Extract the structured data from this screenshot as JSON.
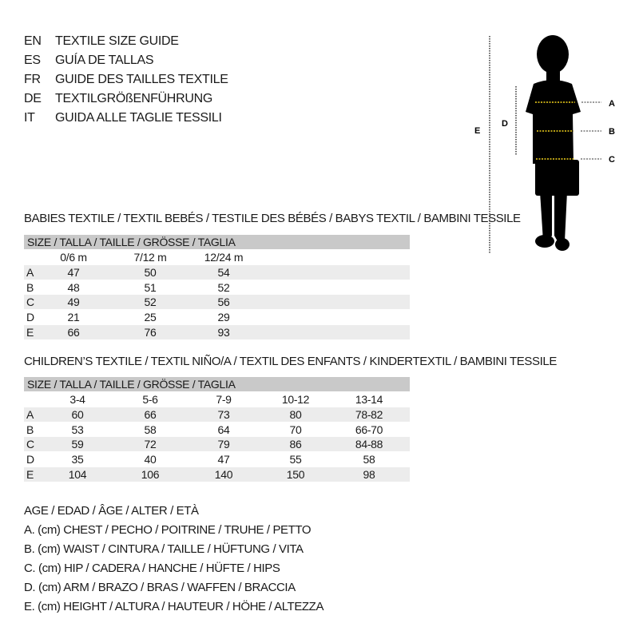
{
  "languages": [
    {
      "code": "EN",
      "title": "TEXTILE SIZE GUIDE"
    },
    {
      "code": "ES",
      "title": "GUÍA DE TALLAS"
    },
    {
      "code": "FR",
      "title": "GUIDE DES TAILLES TEXTILE"
    },
    {
      "code": "DE",
      "title": "TEXTILGRÖßENFÜHRUNG"
    },
    {
      "code": "IT",
      "title": "GUIDA ALLE TAGLIE TESSILI"
    }
  ],
  "figure": {
    "labels": {
      "a": "A",
      "b": "B",
      "c": "C",
      "d": "D",
      "e": "E"
    },
    "guide_color": "#f2d21b"
  },
  "babies": {
    "title": "BABIES TEXTILE / TEXTIL BEBÉS / TESTILE DES BÉBÉS / BABYS TEXTIL / BAMBINI TESSILE",
    "header": "SIZE / TALLA / TAILLE / GRÖSSE / TAGLIA",
    "columns": [
      "0/6 m",
      "7/12 m",
      "12/24 m"
    ],
    "rows": [
      {
        "label": "A",
        "values": [
          "47",
          "50",
          "54"
        ]
      },
      {
        "label": "B",
        "values": [
          "48",
          "51",
          "52"
        ]
      },
      {
        "label": "C",
        "values": [
          "49",
          "52",
          "56"
        ]
      },
      {
        "label": "D",
        "values": [
          "21",
          "25",
          "29"
        ]
      },
      {
        "label": "E",
        "values": [
          "66",
          "76",
          "93"
        ]
      }
    ]
  },
  "children": {
    "title": "CHILDREN’S TEXTILE / TEXTIL NIÑO/A / TEXTIL DES ENFANTS / KINDERTEXTIL / BAMBINI TESSILE",
    "header": "SIZE / TALLA / TAILLE / GRÖSSE / TAGLIA",
    "columns": [
      "3-4",
      "5-6",
      "7-9",
      "10-12",
      "13-14"
    ],
    "rows": [
      {
        "label": "A",
        "values": [
          "60",
          "66",
          "73",
          "80",
          "78-82"
        ]
      },
      {
        "label": "B",
        "values": [
          "53",
          "58",
          "64",
          "70",
          "66-70"
        ]
      },
      {
        "label": "C",
        "values": [
          "59",
          "72",
          "79",
          "86",
          "84-88"
        ]
      },
      {
        "label": "D",
        "values": [
          "35",
          "40",
          "47",
          "55",
          "58"
        ]
      },
      {
        "label": "E",
        "values": [
          "104",
          "106",
          "140",
          "150",
          "98"
        ]
      }
    ]
  },
  "legend": [
    "AGE / EDAD / ÂGE / ALTER / ETÀ",
    "A. (cm) CHEST / PECHO / POITRINE / TRUHE / PETTO",
    "B. (cm) WAIST / CINTURA / TAILLE / HÜFTUNG / VITA",
    "C. (cm) HIP / CADERA / HANCHE / HÜFTE / HIPS",
    "D. (cm) ARM / BRAZO / BRAS / WAFFEN / BRACCIA",
    "E. (cm) HEIGHT / ALTURA / HAUTEUR / HÖHE / ALTEZZA"
  ]
}
